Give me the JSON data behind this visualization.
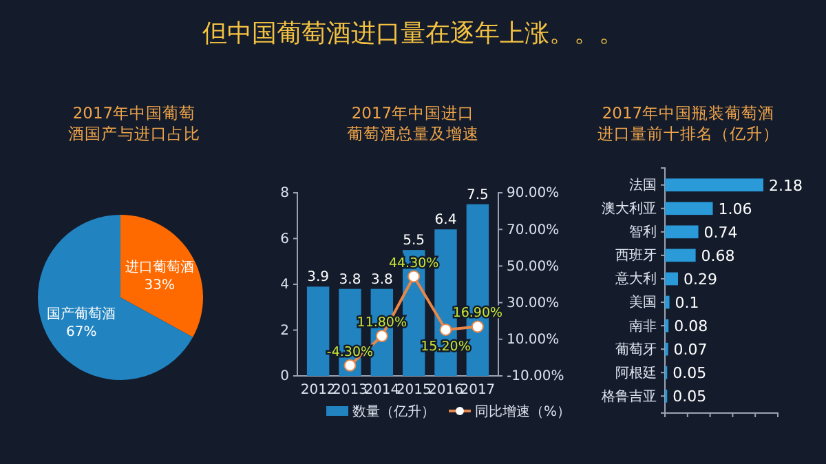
{
  "chart_data": [
    {
      "type": "pie",
      "title": "2017年中国葡萄酒国产与进口占比",
      "annotations": [
        "但中国葡萄酒进口量在逐年上涨。。。"
      ],
      "categories": [
        "进口葡萄酒",
        "国产葡萄酒"
      ],
      "values": [
        33,
        67
      ],
      "colors": [
        "#ff6a00",
        "#2183c0"
      ],
      "value_labels": [
        "33%",
        "67%"
      ]
    },
    {
      "type": "bar",
      "title": "2017年中国进口葡萄酒总量及增速",
      "categories": [
        "2012",
        "2013",
        "2014",
        "2015",
        "2016",
        "2017"
      ],
      "ylim": [
        0,
        8
      ],
      "yticks": [
        0,
        2,
        4,
        6,
        8
      ],
      "y2lim": [
        -10,
        90
      ],
      "y2ticks": [
        {
          "value": -10,
          "label": "-10.00%"
        },
        {
          "value": 10,
          "label": "10.00%"
        },
        {
          "value": 30,
          "label": "30.00%"
        },
        {
          "value": 50,
          "label": "50.00%"
        },
        {
          "value": 70,
          "label": "70.00%"
        },
        {
          "value": 90,
          "label": "90.00%"
        }
      ],
      "legend": "bottom",
      "marker": "circle",
      "series": [
        {
          "name": "数量（亿升）",
          "type": "bar",
          "color": "#2183c0",
          "values": [
            3.9,
            3.8,
            3.8,
            5.5,
            6.4,
            7.5
          ],
          "value_labels": [
            "3.9",
            "3.8",
            "3.8",
            "5.5",
            "6.4",
            "7.5"
          ]
        },
        {
          "name": "同比增速（%）",
          "type": "line",
          "axis": "y2",
          "color": "#e8874a",
          "values": [
            null,
            -4.3,
            11.8,
            44.3,
            15.2,
            16.9
          ],
          "value_labels": [
            null,
            "-4.30%",
            "11.80%",
            "44.30%",
            "15.20%",
            "16.90%"
          ]
        }
      ]
    },
    {
      "type": "bar",
      "orientation": "horizontal",
      "title": "2017年中国瓶装葡萄酒进口量前十排名（亿升）",
      "categories": [
        "法国",
        "澳大利亚",
        "智利",
        "西班牙",
        "意大利",
        "美国",
        "南非",
        "葡萄牙",
        "阿根廷",
        "格鲁吉亚"
      ],
      "values": [
        2.18,
        1.06,
        0.74,
        0.68,
        0.29,
        0.1,
        0.08,
        0.07,
        0.05,
        0.05
      ],
      "color": "#2a9ad8",
      "data_labels": true,
      "xlim": [
        0,
        2.5
      ],
      "xticks": [
        {
          "value": 0,
          "label": null
        },
        {
          "value": 0.5,
          "label": null
        },
        {
          "value": 1,
          "label": null
        },
        {
          "value": 1.5,
          "label": null
        },
        {
          "value": 2,
          "label": null
        },
        {
          "value": 2.5,
          "label": null
        }
      ]
    }
  ]
}
